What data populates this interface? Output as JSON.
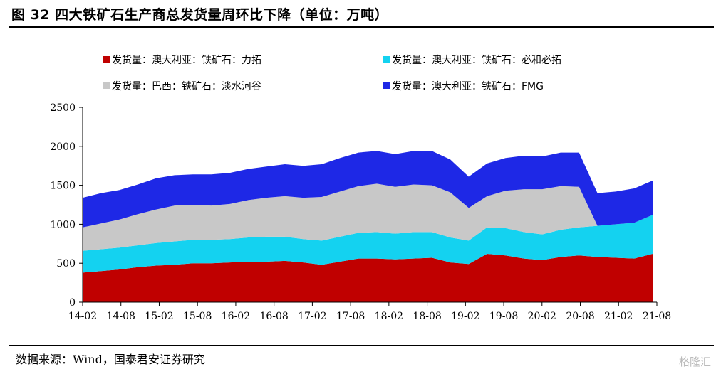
{
  "header": {
    "title": "图 32 四大铁矿石生产商总发货量周环比下降（单位：万吨）"
  },
  "footer": {
    "source": "数据来源：Wind，国泰君安证券研究",
    "watermark": "格隆汇"
  },
  "colors": {
    "rio": "#c00000",
    "bhp": "#14d2f0",
    "vale": "#c8c8c8",
    "fmg": "#1e28e6"
  },
  "chart_data": {
    "type": "area",
    "stacked": true,
    "title": "四大铁矿石生产商总发货量周环比下降",
    "ylabel": "",
    "xlabel": "",
    "ylim": [
      0,
      2500
    ],
    "yticks": [
      0,
      500,
      1000,
      1500,
      2000,
      2500
    ],
    "xticks": [
      "14-02",
      "14-08",
      "15-02",
      "15-08",
      "16-02",
      "16-08",
      "17-02",
      "17-08",
      "18-02",
      "18-08",
      "19-02",
      "19-08",
      "20-02",
      "20-08",
      "21-02",
      "21-08"
    ],
    "grid": false,
    "legend_position": "top",
    "series": [
      {
        "name": "发货量：澳大利亚：铁矿石：力拓",
        "color": "#c00000",
        "values": [
          380,
          400,
          420,
          450,
          470,
          480,
          500,
          500,
          510,
          520,
          520,
          530,
          510,
          480,
          520,
          560,
          560,
          550,
          560,
          570,
          510,
          490,
          620,
          600,
          560,
          540,
          580,
          600,
          580,
          570,
          560,
          620
        ]
      },
      {
        "name": "发货量：澳大利亚：铁矿石：必和必拓",
        "color": "#14d2f0",
        "values": [
          280,
          280,
          280,
          280,
          290,
          300,
          300,
          300,
          300,
          310,
          320,
          310,
          300,
          310,
          320,
          330,
          340,
          330,
          340,
          330,
          320,
          300,
          340,
          350,
          340,
          330,
          350,
          360,
          400,
          430,
          460,
          500
        ]
      },
      {
        "name": "发货量：巴西：铁矿石：淡水河谷",
        "color": "#c8c8c8",
        "values": [
          300,
          330,
          360,
          400,
          430,
          460,
          450,
          440,
          450,
          480,
          500,
          520,
          530,
          560,
          580,
          600,
          620,
          600,
          610,
          600,
          580,
          420,
          400,
          480,
          550,
          580,
          560,
          520,
          0,
          0,
          0,
          0
        ]
      },
      {
        "name": "发货量：澳大利亚：铁矿石：FMG",
        "color": "#1e28e6",
        "values": [
          380,
          390,
          380,
          380,
          400,
          390,
          390,
          400,
          400,
          400,
          400,
          410,
          410,
          420,
          430,
          430,
          420,
          420,
          430,
          440,
          420,
          400,
          420,
          420,
          430,
          420,
          430,
          440,
          420,
          420,
          440,
          440
        ]
      }
    ]
  }
}
